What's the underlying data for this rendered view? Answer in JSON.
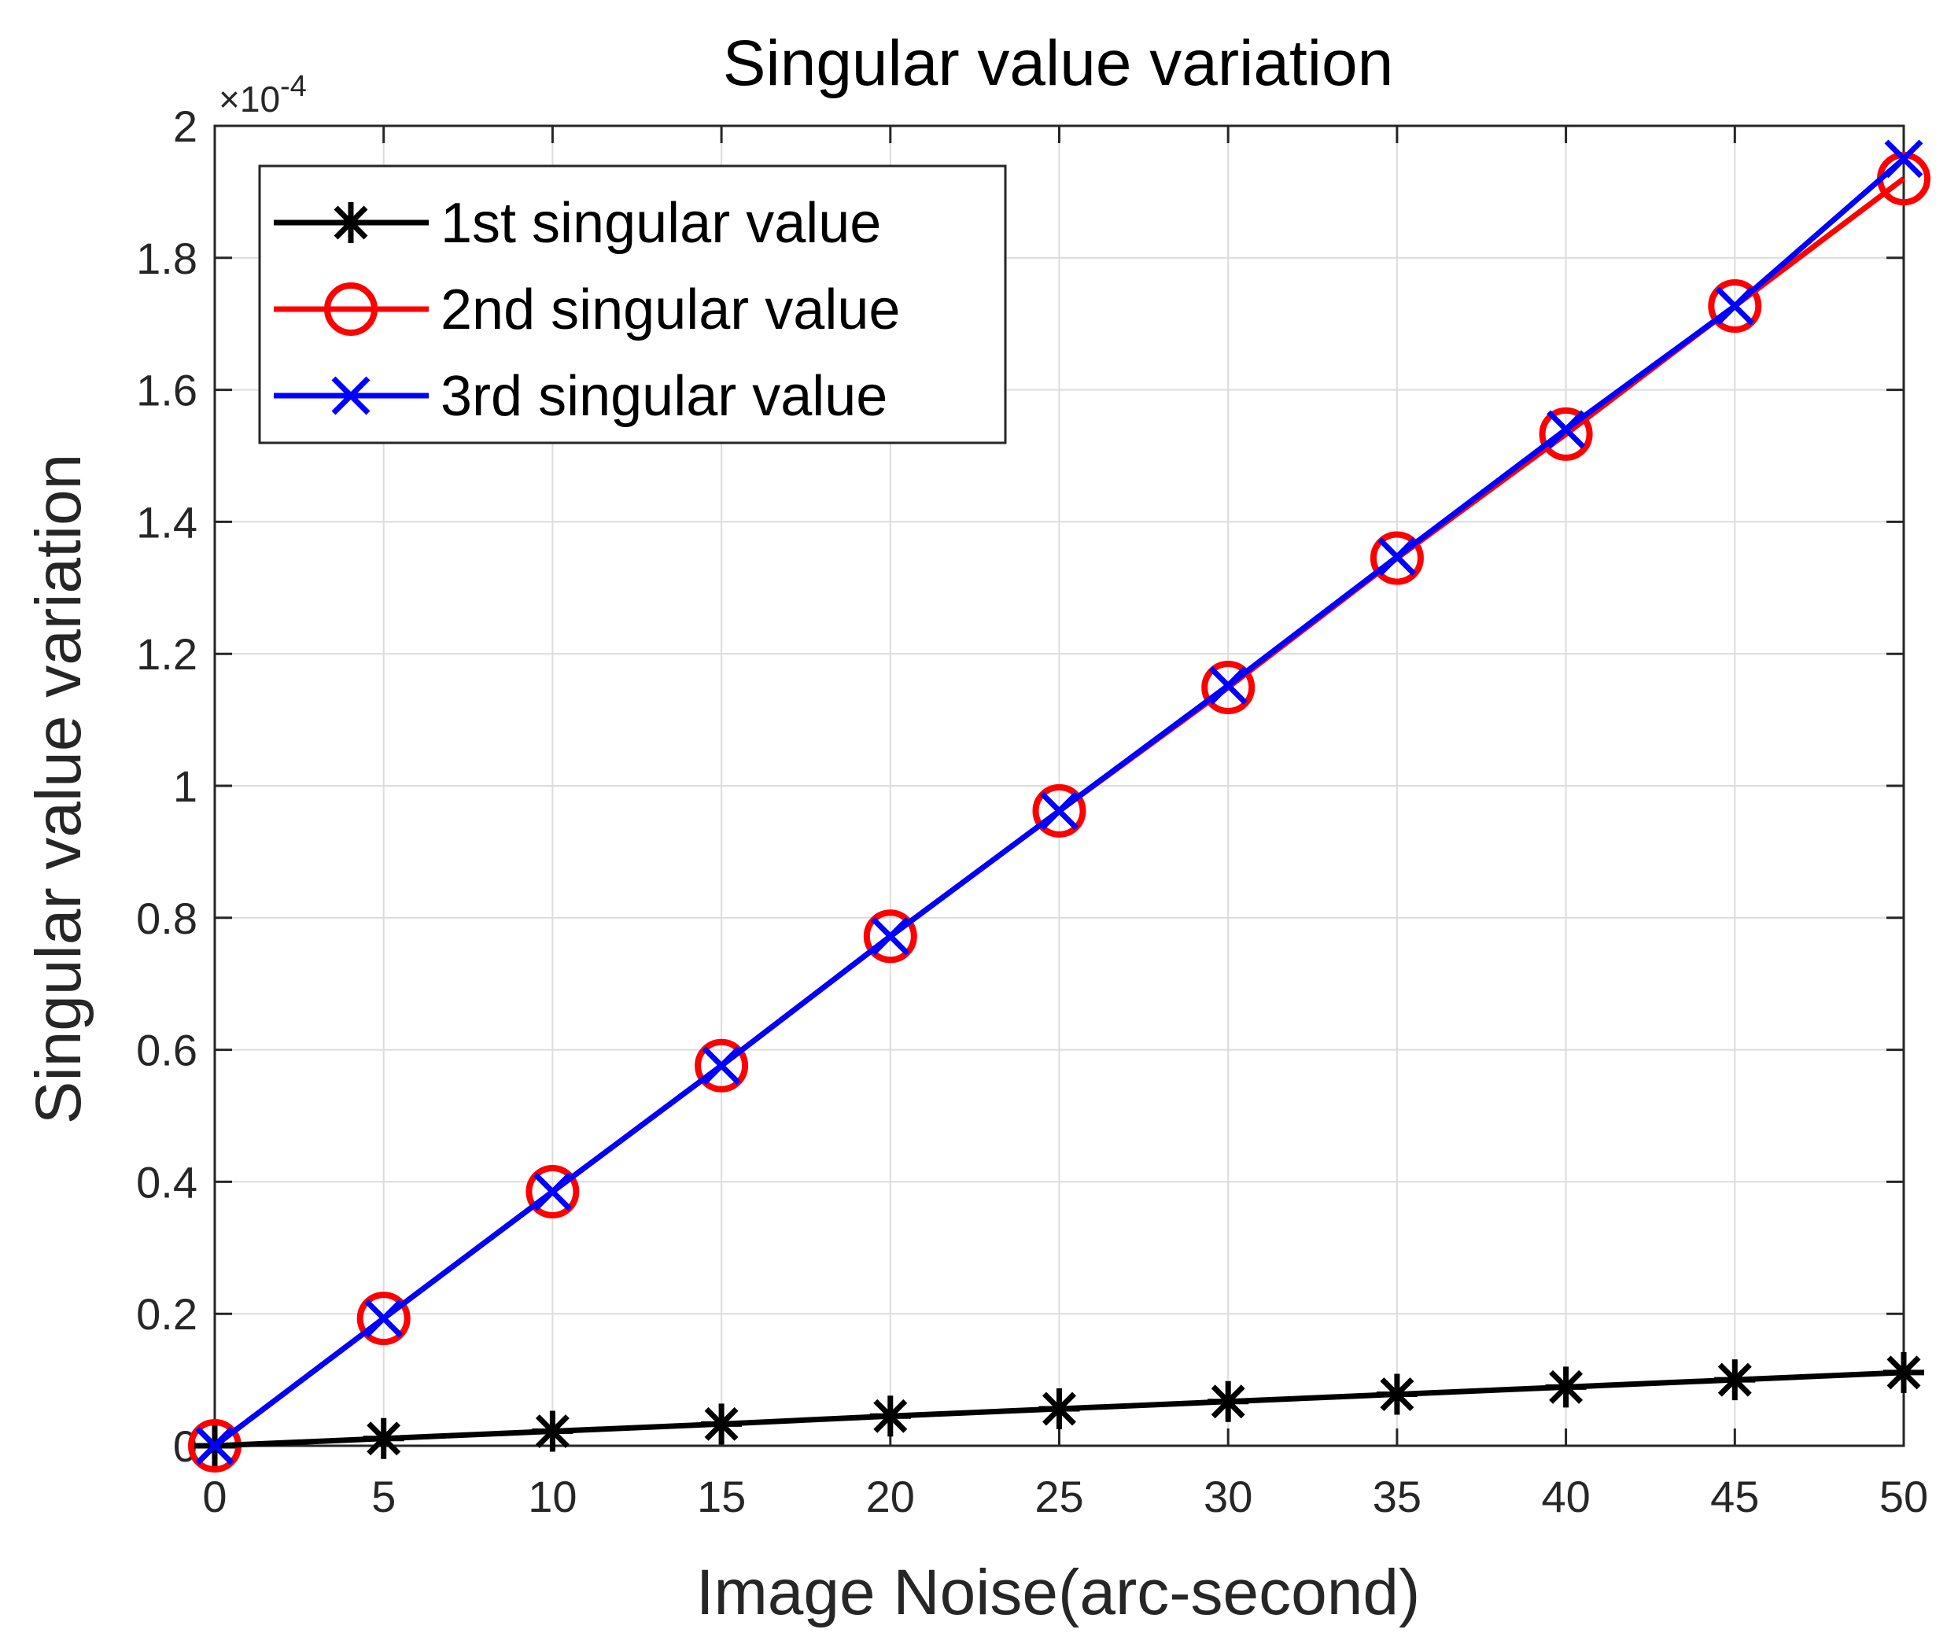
{
  "chart_data": {
    "type": "line",
    "title": "Singular value variation",
    "xlabel": "Image Noise(arc-second)",
    "ylabel": "Singular value variation",
    "y_exponent_label": "×10^-4",
    "y_exponent_base": "×10",
    "y_exponent_power": "-4",
    "xlim": [
      0,
      50
    ],
    "ylim": [
      0,
      2
    ],
    "x_ticks": [
      0,
      5,
      10,
      15,
      20,
      25,
      30,
      35,
      40,
      45,
      50
    ],
    "y_ticks": [
      0,
      0.2,
      0.4,
      0.6,
      0.8,
      1,
      1.2,
      1.4,
      1.6,
      1.8,
      2
    ],
    "y_tick_labels": [
      "0",
      "0.2",
      "0.4",
      "0.6",
      "0.8",
      "1",
      "1.2",
      "1.4",
      "1.6",
      "1.8",
      "2"
    ],
    "grid": true,
    "legend_position": "top-left",
    "x": [
      0,
      5,
      10,
      15,
      20,
      25,
      30,
      35,
      40,
      45,
      50
    ],
    "series": [
      {
        "name": "1st singular value",
        "color": "#000000",
        "marker": "star",
        "values": [
          0,
          0.011,
          0.022,
          0.033,
          0.045,
          0.056,
          0.067,
          0.078,
          0.089,
          0.1,
          0.111
        ]
      },
      {
        "name": "2nd singular value",
        "color": "#ff0000",
        "marker": "circle",
        "values": [
          0,
          0.193,
          0.385,
          0.576,
          0.772,
          0.962,
          1.149,
          1.345,
          1.533,
          1.727,
          1.92
        ]
      },
      {
        "name": "3rd singular value",
        "color": "#0000ff",
        "marker": "x",
        "values": [
          0,
          0.193,
          0.385,
          0.576,
          0.772,
          0.962,
          1.152,
          1.347,
          1.54,
          1.727,
          1.95
        ]
      }
    ]
  }
}
